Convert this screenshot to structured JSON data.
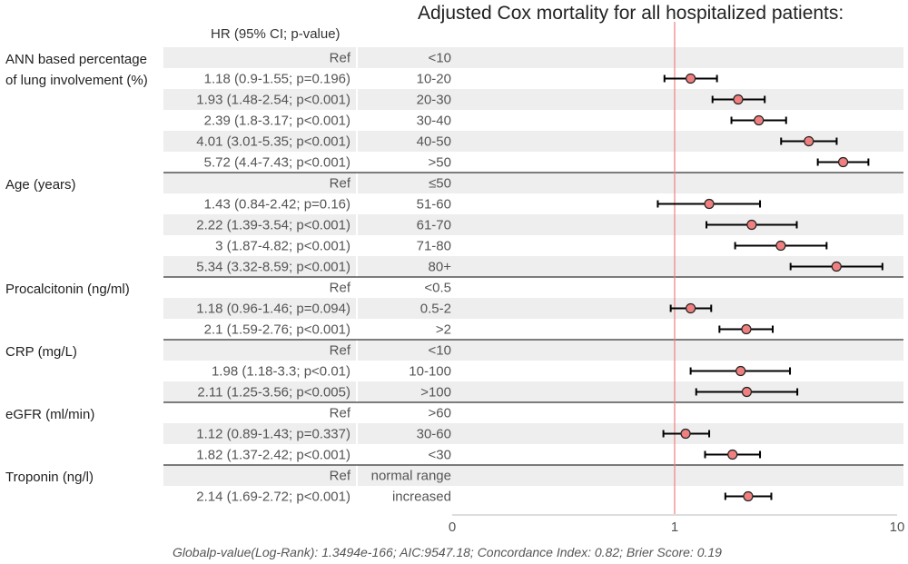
{
  "title": "Adjusted Cox mortality for all hospitalized patients:",
  "hr_header": "HR (95% CI; p-value)",
  "footer": "Globalp-value(Log-Rank): 1.3494e-166; AIC:9547.18; Concordance Index: 0.82; Brier Score: 0.19",
  "colors": {
    "marker": "#f08080",
    "ref_line": "#f08080",
    "band": "#eeeeee",
    "line": "#000000"
  },
  "chart_data": {
    "type": "forest",
    "title": "Adjusted Cox mortality for all hospitalized patients:",
    "x_scale": "log",
    "xlim": [
      0.1,
      10
    ],
    "x_ticks": [
      {
        "value": 0.1,
        "label": "0"
      },
      {
        "value": 1,
        "label": "1"
      },
      {
        "value": 10,
        "label": "10"
      }
    ],
    "reference_line": 1,
    "groups": [
      {
        "label": "ANN based percentage\nof lung involvement (%)",
        "rows": [
          {
            "hr_text": "Ref",
            "level": "<10",
            "hr": null,
            "lo": null,
            "hi": null
          },
          {
            "hr_text": "1.18 (0.9-1.55; p=0.196)",
            "level": "10-20",
            "hr": 1.18,
            "lo": 0.9,
            "hi": 1.55
          },
          {
            "hr_text": "1.93 (1.48-2.54; p<0.001)",
            "level": "20-30",
            "hr": 1.93,
            "lo": 1.48,
            "hi": 2.54
          },
          {
            "hr_text": "2.39 (1.8-3.17; p<0.001)",
            "level": "30-40",
            "hr": 2.39,
            "lo": 1.8,
            "hi": 3.17
          },
          {
            "hr_text": "4.01 (3.01-5.35; p<0.001)",
            "level": "40-50",
            "hr": 4.01,
            "lo": 3.01,
            "hi": 5.35
          },
          {
            "hr_text": "5.72 (4.4-7.43; p<0.001)",
            "level": ">50",
            "hr": 5.72,
            "lo": 4.4,
            "hi": 7.43
          }
        ]
      },
      {
        "label": "Age (years)",
        "rows": [
          {
            "hr_text": "Ref",
            "level": "≤50",
            "hr": null,
            "lo": null,
            "hi": null
          },
          {
            "hr_text": "1.43 (0.84-2.42; p=0.16)",
            "level": "51-60",
            "hr": 1.43,
            "lo": 0.84,
            "hi": 2.42
          },
          {
            "hr_text": "2.22 (1.39-3.54; p<0.001)",
            "level": "61-70",
            "hr": 2.22,
            "lo": 1.39,
            "hi": 3.54
          },
          {
            "hr_text": "3 (1.87-4.82; p<0.001)",
            "level": "71-80",
            "hr": 3,
            "lo": 1.87,
            "hi": 4.82
          },
          {
            "hr_text": "5.34 (3.32-8.59; p<0.001)",
            "level": "80+",
            "hr": 5.34,
            "lo": 3.32,
            "hi": 8.59
          }
        ]
      },
      {
        "label": "Procalcitonin (ng/ml)",
        "rows": [
          {
            "hr_text": "Ref",
            "level": "<0.5",
            "hr": null,
            "lo": null,
            "hi": null
          },
          {
            "hr_text": "1.18 (0.96-1.46; p=0.094)",
            "level": "0.5-2",
            "hr": 1.18,
            "lo": 0.96,
            "hi": 1.46
          },
          {
            "hr_text": "2.1 (1.59-2.76; p<0.001)",
            "level": ">2",
            "hr": 2.1,
            "lo": 1.59,
            "hi": 2.76
          }
        ]
      },
      {
        "label": "CRP (mg/L)",
        "rows": [
          {
            "hr_text": "Ref",
            "level": "<10",
            "hr": null,
            "lo": null,
            "hi": null
          },
          {
            "hr_text": "1.98 (1.18-3.3; p<0.01)",
            "level": "10-100",
            "hr": 1.98,
            "lo": 1.18,
            "hi": 3.3
          },
          {
            "hr_text": "2.11 (1.25-3.56; p<0.005)",
            "level": ">100",
            "hr": 2.11,
            "lo": 1.25,
            "hi": 3.56
          }
        ]
      },
      {
        "label": "eGFR (ml/min)",
        "rows": [
          {
            "hr_text": "Ref",
            "level": ">60",
            "hr": null,
            "lo": null,
            "hi": null
          },
          {
            "hr_text": "1.12 (0.89-1.43; p=0.337)",
            "level": "30-60",
            "hr": 1.12,
            "lo": 0.89,
            "hi": 1.43
          },
          {
            "hr_text": "1.82 (1.37-2.42; p<0.001)",
            "level": "<30",
            "hr": 1.82,
            "lo": 1.37,
            "hi": 2.42
          }
        ]
      },
      {
        "label": "Troponin (ng/l)",
        "rows": [
          {
            "hr_text": "Ref",
            "level": "normal range",
            "hr": null,
            "lo": null,
            "hi": null
          },
          {
            "hr_text": "2.14 (1.69-2.72; p<0.001)",
            "level": "increased",
            "hr": 2.14,
            "lo": 1.69,
            "hi": 2.72
          }
        ]
      }
    ]
  }
}
